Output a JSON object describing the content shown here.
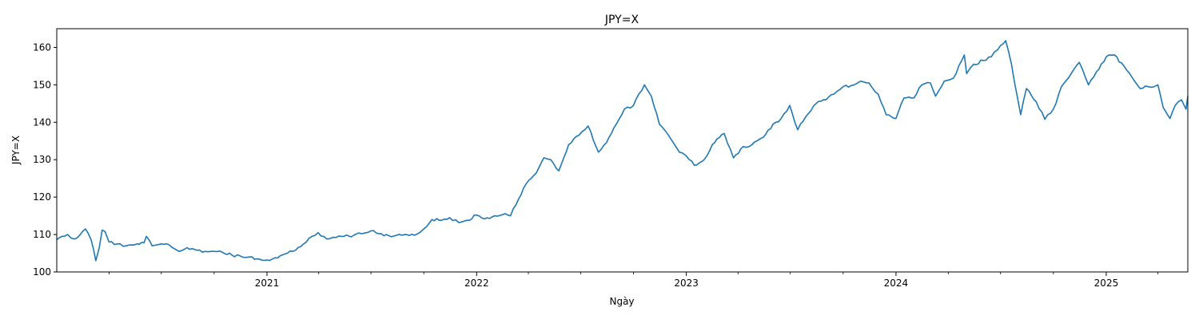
{
  "chart_data": {
    "type": "line",
    "title": "JPY=X",
    "xlabel": "Ngày",
    "ylabel": "JPY=X",
    "xlim": [
      "2020-01-01",
      "2025-05-23"
    ],
    "ylim": [
      100,
      165
    ],
    "grid": false,
    "legend": "none",
    "x_ticks": [
      {
        "label": "2021",
        "date": "2021-01-01"
      },
      {
        "label": "2022",
        "date": "2022-01-01"
      },
      {
        "label": "2023",
        "date": "2023-01-01"
      },
      {
        "label": "2024",
        "date": "2024-01-01"
      },
      {
        "label": "2025",
        "date": "2025-01-01"
      }
    ],
    "x_minor_ticks": [
      "2020-04-01",
      "2020-07-01",
      "2020-10-01",
      "2021-04-01",
      "2021-07-01",
      "2021-10-01",
      "2022-04-01",
      "2022-07-01",
      "2022-10-01",
      "2023-04-01",
      "2023-07-01",
      "2023-10-01",
      "2024-04-01",
      "2024-07-01",
      "2024-10-01",
      "2025-04-01"
    ],
    "y_ticks": [
      100,
      110,
      120,
      130,
      140,
      150,
      160
    ],
    "series": [
      {
        "color": "#1f77b4",
        "points": [
          [
            "2020-01-01",
            108.6
          ],
          [
            "2020-01-10",
            109.5
          ],
          [
            "2020-01-20",
            110.0
          ],
          [
            "2020-02-01",
            108.8
          ],
          [
            "2020-02-10",
            109.8
          ],
          [
            "2020-02-20",
            111.5
          ],
          [
            "2020-03-01",
            108.5
          ],
          [
            "2020-03-05",
            106.0
          ],
          [
            "2020-03-09",
            103.0
          ],
          [
            "2020-03-15",
            106.5
          ],
          [
            "2020-03-20",
            111.2
          ],
          [
            "2020-03-25",
            110.8
          ],
          [
            "2020-04-01",
            108.0
          ],
          [
            "2020-04-15",
            107.5
          ],
          [
            "2020-05-01",
            107.0
          ],
          [
            "2020-05-15",
            107.2
          ],
          [
            "2020-06-01",
            107.8
          ],
          [
            "2020-06-05",
            109.5
          ],
          [
            "2020-06-15",
            107.0
          ],
          [
            "2020-07-01",
            107.5
          ],
          [
            "2020-07-15",
            107.2
          ],
          [
            "2020-08-01",
            105.5
          ],
          [
            "2020-08-15",
            106.5
          ],
          [
            "2020-09-01",
            105.8
          ],
          [
            "2020-09-15",
            105.5
          ],
          [
            "2020-10-01",
            105.5
          ],
          [
            "2020-10-15",
            105.3
          ],
          [
            "2020-11-01",
            104.5
          ],
          [
            "2020-11-15",
            104.3
          ],
          [
            "2020-12-01",
            104.0
          ],
          [
            "2020-12-15",
            103.5
          ],
          [
            "2021-01-01",
            103.2
          ],
          [
            "2021-01-15",
            103.8
          ],
          [
            "2021-02-01",
            104.8
          ],
          [
            "2021-02-15",
            105.5
          ],
          [
            "2021-03-01",
            106.8
          ],
          [
            "2021-03-15",
            109.0
          ],
          [
            "2021-03-31",
            110.5
          ],
          [
            "2021-04-15",
            108.8
          ],
          [
            "2021-05-01",
            109.2
          ],
          [
            "2021-05-15",
            109.5
          ],
          [
            "2021-06-01",
            109.8
          ],
          [
            "2021-06-15",
            110.2
          ],
          [
            "2021-07-01",
            111.0
          ],
          [
            "2021-07-15",
            110.2
          ],
          [
            "2021-08-01",
            109.7
          ],
          [
            "2021-08-15",
            109.8
          ],
          [
            "2021-09-01",
            110.0
          ],
          [
            "2021-09-15",
            109.8
          ],
          [
            "2021-10-01",
            111.5
          ],
          [
            "2021-10-15",
            114.0
          ],
          [
            "2021-11-01",
            113.8
          ],
          [
            "2021-11-15",
            114.5
          ],
          [
            "2021-12-01",
            113.2
          ],
          [
            "2021-12-15",
            113.8
          ],
          [
            "2022-01-01",
            115.2
          ],
          [
            "2022-01-15",
            114.2
          ],
          [
            "2022-02-01",
            115.0
          ],
          [
            "2022-02-15",
            115.3
          ],
          [
            "2022-03-01",
            115.0
          ],
          [
            "2022-03-15",
            119.5
          ],
          [
            "2022-03-28",
            123.5
          ],
          [
            "2022-04-15",
            126.5
          ],
          [
            "2022-04-28",
            130.5
          ],
          [
            "2022-05-10",
            130.0
          ],
          [
            "2022-05-24",
            127.0
          ],
          [
            "2022-06-10",
            134.0
          ],
          [
            "2022-06-28",
            136.5
          ],
          [
            "2022-07-14",
            139.0
          ],
          [
            "2022-08-01",
            132.0
          ],
          [
            "2022-08-15",
            134.5
          ],
          [
            "2022-09-01",
            139.5
          ],
          [
            "2022-09-15",
            143.5
          ],
          [
            "2022-10-01",
            144.5
          ],
          [
            "2022-10-20",
            150.0
          ],
          [
            "2022-11-01",
            147.0
          ],
          [
            "2022-11-15",
            139.5
          ],
          [
            "2022-12-01",
            136.5
          ],
          [
            "2022-12-20",
            132.0
          ],
          [
            "2023-01-01",
            131.0
          ],
          [
            "2023-01-15",
            128.5
          ],
          [
            "2023-02-01",
            130.0
          ],
          [
            "2023-02-15",
            134.0
          ],
          [
            "2023-03-08",
            137.0
          ],
          [
            "2023-03-24",
            130.5
          ],
          [
            "2023-04-10",
            133.5
          ],
          [
            "2023-04-25",
            134.0
          ],
          [
            "2023-05-15",
            136.0
          ],
          [
            "2023-06-01",
            139.5
          ],
          [
            "2023-06-15",
            141.0
          ],
          [
            "2023-06-30",
            144.5
          ],
          [
            "2023-07-14",
            138.0
          ],
          [
            "2023-07-28",
            141.5
          ],
          [
            "2023-08-15",
            145.0
          ],
          [
            "2023-09-01",
            146.0
          ],
          [
            "2023-09-15",
            147.5
          ],
          [
            "2023-10-01",
            149.5
          ],
          [
            "2023-10-15",
            149.8
          ],
          [
            "2023-11-01",
            151.0
          ],
          [
            "2023-11-15",
            150.5
          ],
          [
            "2023-12-01",
            147.5
          ],
          [
            "2023-12-15",
            142.0
          ],
          [
            "2024-01-01",
            141.0
          ],
          [
            "2024-01-15",
            146.5
          ],
          [
            "2024-02-01",
            146.5
          ],
          [
            "2024-02-15",
            150.0
          ],
          [
            "2024-03-01",
            150.5
          ],
          [
            "2024-03-10",
            147.0
          ],
          [
            "2024-03-25",
            151.0
          ],
          [
            "2024-04-10",
            151.8
          ],
          [
            "2024-04-29",
            158.0
          ],
          [
            "2024-05-03",
            153.0
          ],
          [
            "2024-05-15",
            155.5
          ],
          [
            "2024-06-01",
            156.5
          ],
          [
            "2024-06-15",
            157.5
          ],
          [
            "2024-07-01",
            160.5
          ],
          [
            "2024-07-10",
            161.8
          ],
          [
            "2024-07-20",
            155.5
          ],
          [
            "2024-08-05",
            142.0
          ],
          [
            "2024-08-15",
            149.0
          ],
          [
            "2024-09-01",
            145.5
          ],
          [
            "2024-09-16",
            140.8
          ],
          [
            "2024-10-01",
            143.5
          ],
          [
            "2024-10-15",
            149.5
          ],
          [
            "2024-11-01",
            153.0
          ],
          [
            "2024-11-15",
            156.0
          ],
          [
            "2024-12-01",
            150.0
          ],
          [
            "2024-12-15",
            153.5
          ],
          [
            "2025-01-01",
            157.5
          ],
          [
            "2025-01-15",
            158.0
          ],
          [
            "2025-02-01",
            155.0
          ],
          [
            "2025-02-15",
            152.0
          ],
          [
            "2025-03-01",
            149.0
          ],
          [
            "2025-03-15",
            149.5
          ],
          [
            "2025-04-01",
            150.0
          ],
          [
            "2025-04-10",
            144.0
          ],
          [
            "2025-04-22",
            141.0
          ],
          [
            "2025-05-01",
            144.5
          ],
          [
            "2025-05-12",
            146.0
          ],
          [
            "2025-05-20",
            143.5
          ],
          [
            "2025-05-23",
            147.0
          ]
        ]
      }
    ]
  }
}
